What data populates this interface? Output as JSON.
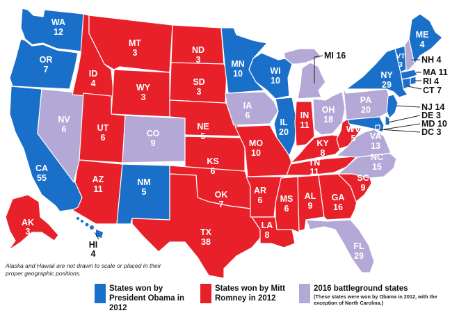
{
  "colors": {
    "obama": "#1a6fc9",
    "romney": "#e8202a",
    "battleground": "#b3a8d6"
  },
  "states": {
    "WA": {
      "label": "WA",
      "ev": "12"
    },
    "OR": {
      "label": "OR",
      "ev": "7"
    },
    "CA": {
      "label": "CA",
      "ev": "55"
    },
    "NV": {
      "label": "NV",
      "ev": "6"
    },
    "ID": {
      "label": "ID",
      "ev": "4"
    },
    "MT": {
      "label": "MT",
      "ev": "3"
    },
    "WY": {
      "label": "WY",
      "ev": "3"
    },
    "UT": {
      "label": "UT",
      "ev": "6"
    },
    "AZ": {
      "label": "AZ",
      "ev": "11"
    },
    "CO": {
      "label": "CO",
      "ev": "9"
    },
    "NM": {
      "label": "NM",
      "ev": "5"
    },
    "ND": {
      "label": "ND",
      "ev": "3"
    },
    "SD": {
      "label": "SD",
      "ev": "3"
    },
    "NE": {
      "label": "NE",
      "ev": "5"
    },
    "KS": {
      "label": "KS",
      "ev": "6"
    },
    "OK": {
      "label": "OK",
      "ev": "7"
    },
    "TX": {
      "label": "TX",
      "ev": "38"
    },
    "MN": {
      "label": "MN",
      "ev": "10"
    },
    "IA": {
      "label": "IA",
      "ev": "6"
    },
    "MO": {
      "label": "MO",
      "ev": "10"
    },
    "AR": {
      "label": "AR",
      "ev": "6"
    },
    "LA": {
      "label": "LA",
      "ev": "8"
    },
    "WI": {
      "label": "WI",
      "ev": "10"
    },
    "IL": {
      "label": "IL",
      "ev": "20"
    },
    "MI": {
      "label": "MI",
      "ev": "16"
    },
    "IN": {
      "label": "IN",
      "ev": "11"
    },
    "OH": {
      "label": "OH",
      "ev": "18"
    },
    "KY": {
      "label": "KY",
      "ev": "8"
    },
    "TN": {
      "label": "TN",
      "ev": "11"
    },
    "MS": {
      "label": "MS",
      "ev": "6"
    },
    "AL": {
      "label": "AL",
      "ev": "9"
    },
    "GA": {
      "label": "GA",
      "ev": "16"
    },
    "FL": {
      "label": "FL",
      "ev": "29"
    },
    "SC": {
      "label": "SC",
      "ev": "9"
    },
    "NC": {
      "label": "NC",
      "ev": "15"
    },
    "VA": {
      "label": "VA",
      "ev": "13"
    },
    "WV": {
      "label": "WV",
      "ev": "5"
    },
    "PA": {
      "label": "PA",
      "ev": "20"
    },
    "NY": {
      "label": "NY",
      "ev": "29"
    },
    "VT": {
      "label": "VT",
      "ev": "3"
    },
    "ME": {
      "label": "ME",
      "ev": "4"
    },
    "AK": {
      "label": "AK",
      "ev": "3"
    },
    "HI": {
      "label": "HI",
      "ev": "4"
    }
  },
  "callouts": {
    "MI": "MI 16",
    "NH": "NH 4",
    "MA": "MA 11",
    "RI": "RI  4",
    "CT": "CT  7",
    "NJ": "NJ  14",
    "DE": "DE  3",
    "MD": "MD 10",
    "DC": "DC  3"
  },
  "note": "Alaska and Hawaii are not drawn to scale or placed in their proper geographic positions.",
  "legend": {
    "obama": "States won by President Obama in 2012",
    "romney": "States won by Mitt Romney in 2012",
    "battleground": "2016 battleground states",
    "battleground_sub": "(These states were won by Obama in 2012, with the exception of North Carolina.)"
  }
}
